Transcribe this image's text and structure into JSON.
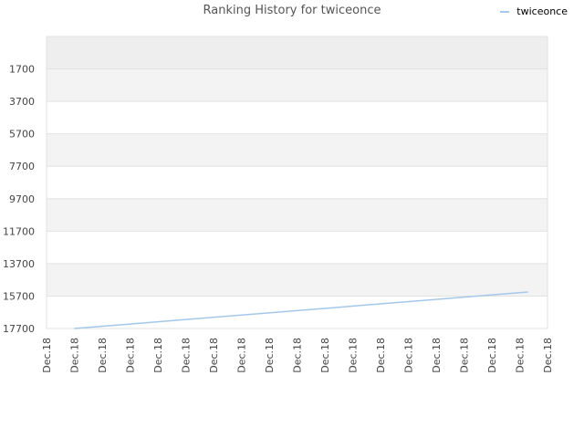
{
  "chart_data": {
    "type": "line",
    "title": "Ranking History for twiceonce",
    "xlabel": "",
    "ylabel": "",
    "y_inverted": true,
    "ylim": [
      -300,
      17700
    ],
    "yticks": [
      1700,
      3700,
      5700,
      7700,
      9700,
      11700,
      13700,
      15700,
      17700
    ],
    "xtick_labels": [
      "Dec.18",
      "Dec.18",
      "Dec.18",
      "Dec.18",
      "Dec.18",
      "Dec.18",
      "Dec.18",
      "Dec.18",
      "Dec.18",
      "Dec.18",
      "Dec.18",
      "Dec.18",
      "Dec.18",
      "Dec.18",
      "Dec.18",
      "Dec.18",
      "Dec.18",
      "Dec.18",
      "Dec.18"
    ],
    "grid": true,
    "legend_position": "top-right",
    "series": [
      {
        "name": "twiceonce",
        "color": "#a3c8ec",
        "x": [
          1,
          17.3
        ],
        "values": [
          17700,
          15450
        ]
      }
    ]
  },
  "colors": {
    "band_light": "#f3f3f3",
    "band_top": "#eeeeee",
    "grid": "#e2e2e2",
    "axis_text": "#444444",
    "title_text": "#555555"
  }
}
